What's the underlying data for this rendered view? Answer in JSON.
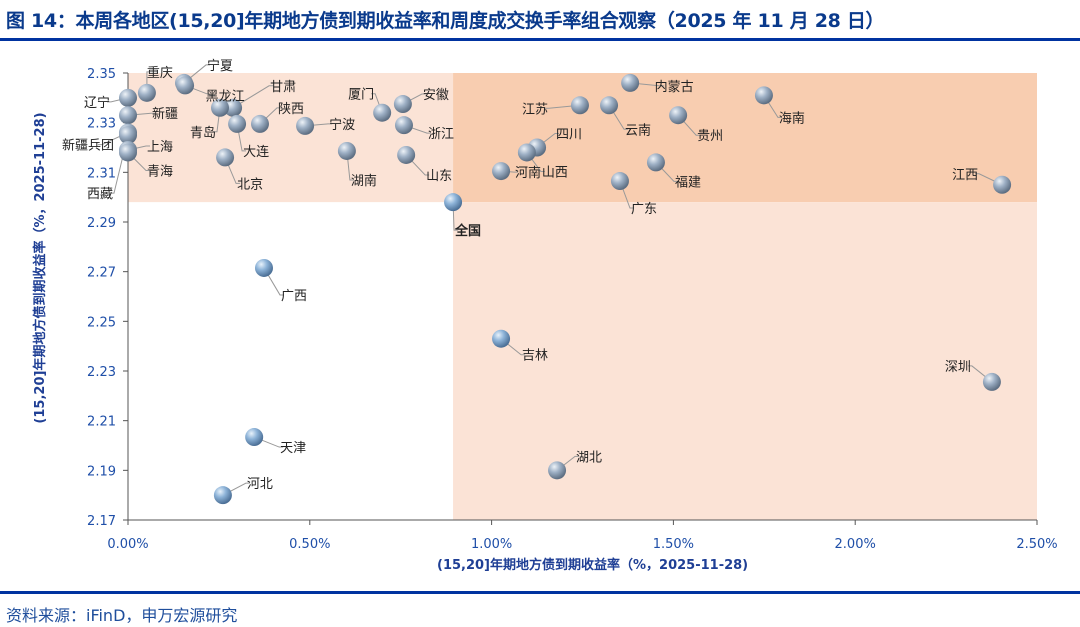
{
  "title": "图 14：本周各地区(15,20]年期地方债到期收益率和周度成交换手率组合观察（2025 年 11 月 28 日）",
  "source": "资料来源：iFinD，申万宏源研究",
  "colors": {
    "accent": "#0033a0",
    "quadrant_light": "#fbe3d6",
    "quadrant_dark": "#f8cdb0",
    "highlight": "#e00000",
    "marker": "#8a9bb0"
  },
  "chart_data": {
    "type": "scatter",
    "title": "",
    "xlabel": "(15,20]年期地方债到期收益率（%，2025-11-28)",
    "ylabel": "(15,20]年期地方债到期收益率（%，2025-11-28)",
    "xlim": [
      0,
      2.5
    ],
    "ylim": [
      2.17,
      2.35
    ],
    "x_ticks": [
      "0.00%",
      "0.50%",
      "1.00%",
      "1.50%",
      "2.00%",
      "2.50%"
    ],
    "y_ticks": [
      "2.17",
      "2.19",
      "2.21",
      "2.23",
      "2.25",
      "2.27",
      "2.29",
      "2.31",
      "2.33",
      "2.35"
    ],
    "grid": false,
    "quadrant_split": {
      "x": 0.894,
      "y": 2.298
    },
    "points": [
      {
        "name": "辽宁",
        "x": 0.0,
        "y": 2.34
      },
      {
        "name": "重庆",
        "x": 0.052,
        "y": 2.342
      },
      {
        "name": "宁夏",
        "x": 0.154,
        "y": 2.346
      },
      {
        "name": "黑龙江",
        "x": 0.157,
        "y": 2.345
      },
      {
        "name": "新疆",
        "x": 0.0,
        "y": 2.333
      },
      {
        "name": "新疆兵团",
        "x": 0.0,
        "y": 2.326
      },
      {
        "name": "西藏",
        "x": 0.0,
        "y": 2.325
      },
      {
        "name": "上海",
        "x": 0.0,
        "y": 2.319
      },
      {
        "name": "青海",
        "x": 0.0,
        "y": 2.318
      },
      {
        "name": "甘肃",
        "x": 0.289,
        "y": 2.336
      },
      {
        "name": "青岛",
        "x": 0.253,
        "y": 2.336
      },
      {
        "name": "大连",
        "x": 0.3,
        "y": 2.3295
      },
      {
        "name": "陕西",
        "x": 0.363,
        "y": 2.3295
      },
      {
        "name": "宁波",
        "x": 0.487,
        "y": 2.3287
      },
      {
        "name": "北京",
        "x": 0.267,
        "y": 2.316
      },
      {
        "name": "湖南",
        "x": 0.602,
        "y": 2.3186
      },
      {
        "name": "厦门",
        "x": 0.699,
        "y": 2.334
      },
      {
        "name": "安徽",
        "x": 0.756,
        "y": 2.3375
      },
      {
        "name": "浙江",
        "x": 0.759,
        "y": 2.329
      },
      {
        "name": "山东",
        "x": 0.765,
        "y": 2.317
      },
      {
        "name": "全国",
        "x": 0.894,
        "y": 2.298
      },
      {
        "name": "河南",
        "x": 1.026,
        "y": 2.3105
      },
      {
        "name": "江苏",
        "x": 1.243,
        "y": 2.337
      },
      {
        "name": "四川",
        "x": 1.125,
        "y": 2.32
      },
      {
        "name": "山西",
        "x": 1.097,
        "y": 2.318
      },
      {
        "name": "内蒙古",
        "x": 1.381,
        "y": 2.346
      },
      {
        "name": "云南",
        "x": 1.323,
        "y": 2.337
      },
      {
        "name": "贵州",
        "x": 1.513,
        "y": 2.333
      },
      {
        "name": "福建",
        "x": 1.452,
        "y": 2.314
      },
      {
        "name": "广东",
        "x": 1.353,
        "y": 2.3065
      },
      {
        "name": "海南",
        "x": 1.749,
        "y": 2.341
      },
      {
        "name": "江西",
        "x": 2.404,
        "y": 2.305
      },
      {
        "name": "广西",
        "x": 0.374,
        "y": 2.2715
      },
      {
        "name": "吉林",
        "x": 1.026,
        "y": 2.243
      },
      {
        "name": "深圳",
        "x": 2.376,
        "y": 2.2256
      },
      {
        "name": "天津",
        "x": 0.347,
        "y": 2.2034
      },
      {
        "name": "湖北",
        "x": 1.18,
        "y": 2.19
      },
      {
        "name": "河北",
        "x": 0.261,
        "y": 2.18
      }
    ]
  }
}
